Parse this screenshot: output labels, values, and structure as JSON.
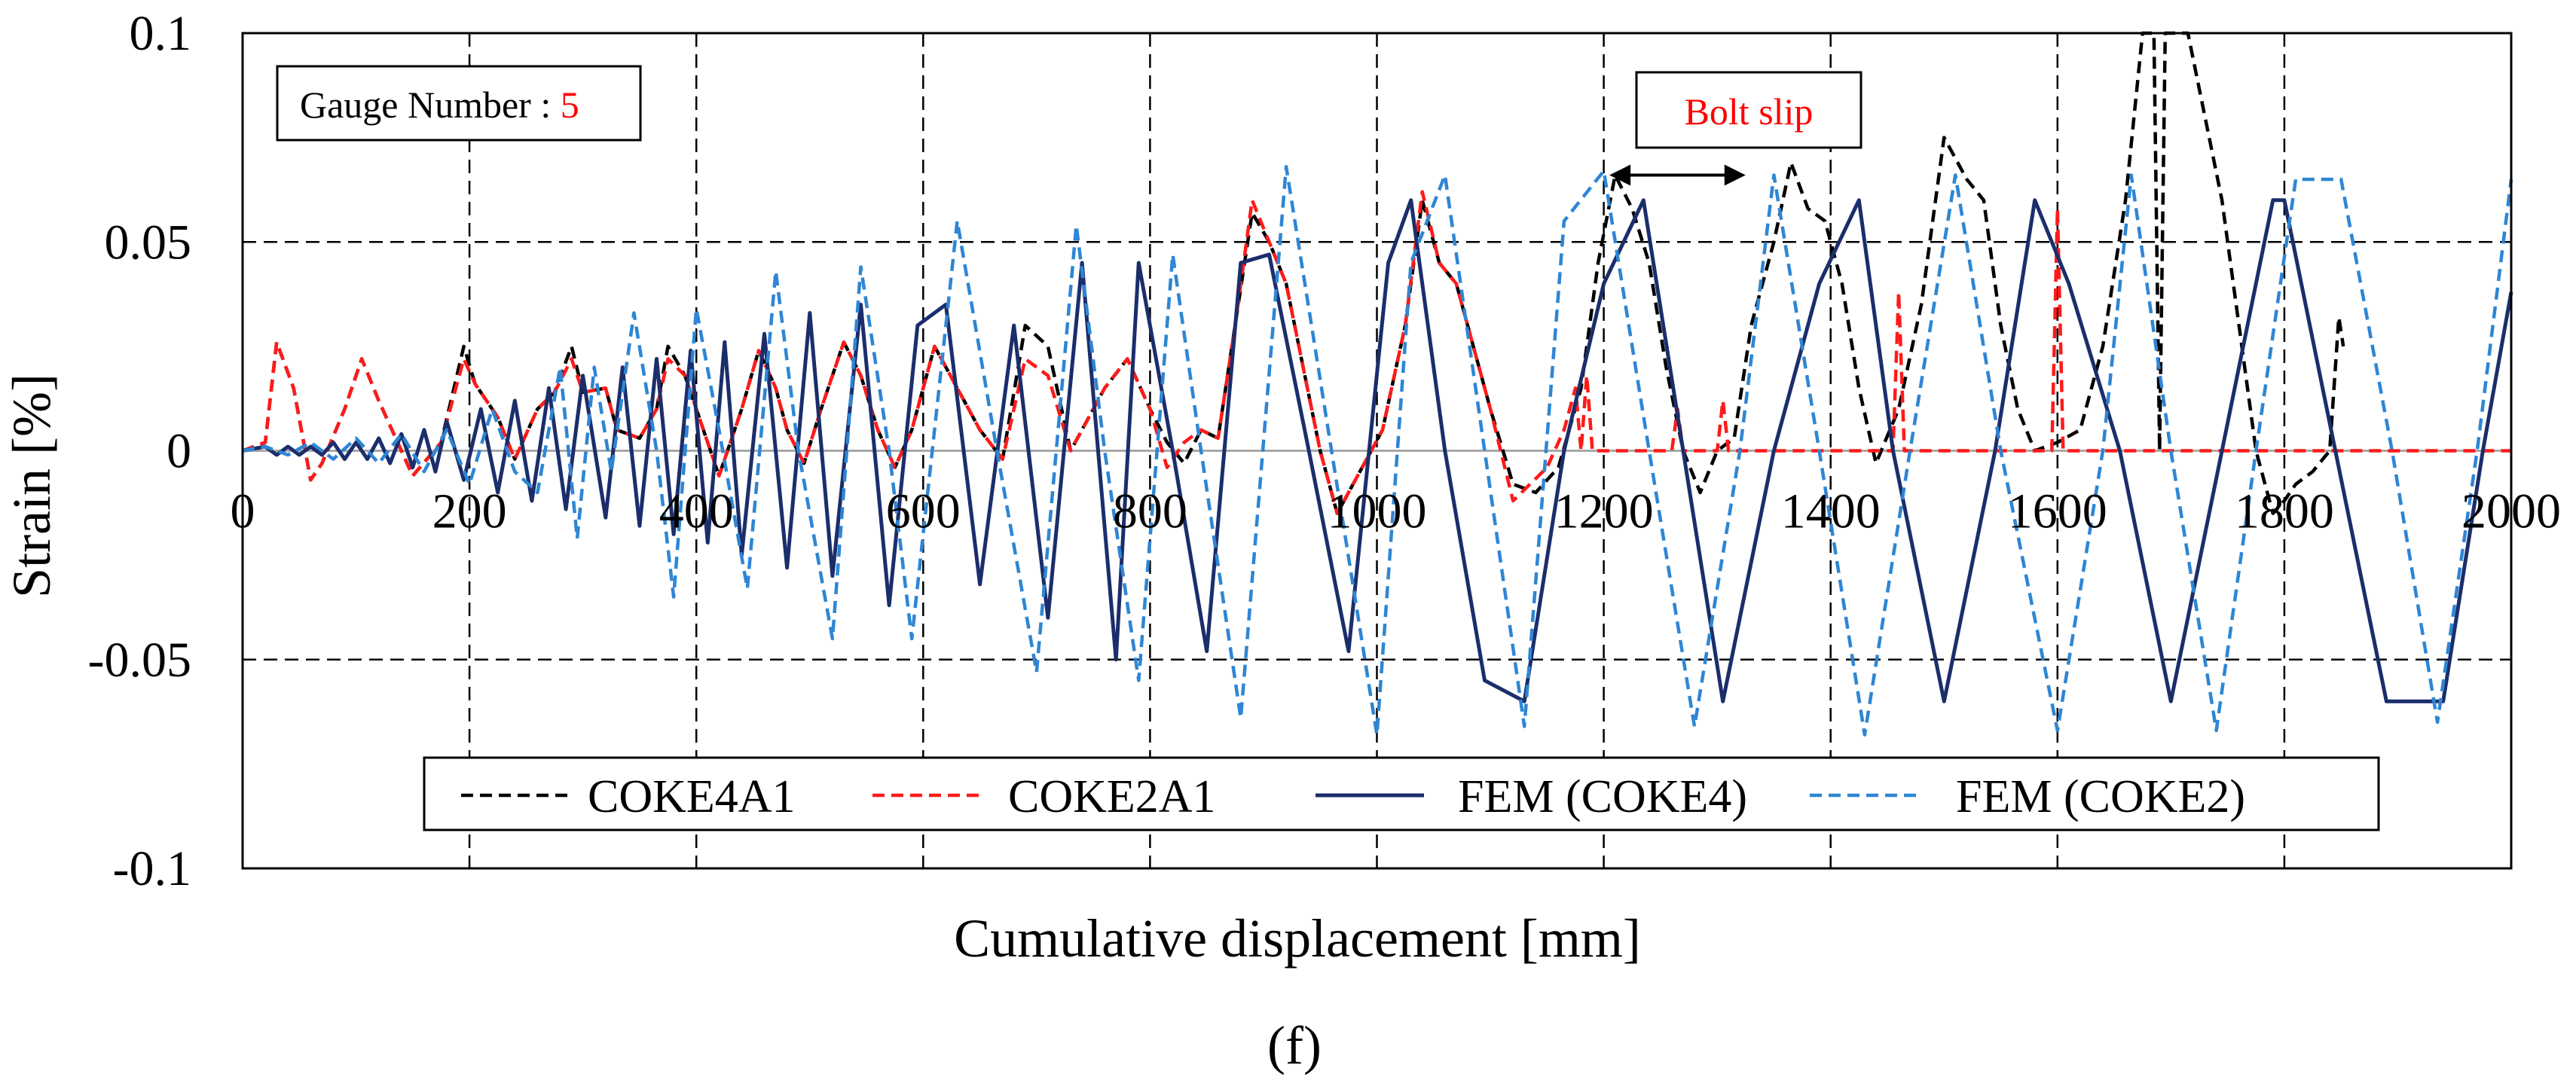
{
  "figure": {
    "sub_label": "(f)"
  },
  "chart_data": {
    "type": "line",
    "xlabel": "Cumulative displacement [mm]",
    "ylabel": "Strain [%]",
    "xlim": [
      0,
      2000
    ],
    "ylim": [
      -0.1,
      0.1
    ],
    "x_ticks": [
      0,
      200,
      400,
      600,
      800,
      1000,
      1200,
      1400,
      1600,
      1800,
      2000
    ],
    "y_ticks": [
      0.1,
      0.05,
      0,
      -0.05,
      -0.1
    ],
    "x_tick_labels": [
      "0",
      "200",
      "400",
      "600",
      "800",
      "1000",
      "1200",
      "1400",
      "1600",
      "1800",
      "2000"
    ],
    "y_tick_labels": [
      "0.1",
      "0.05",
      "0",
      "-0.05",
      "-0.1"
    ],
    "grid": true,
    "legend_position": "bottom",
    "annotations": {
      "gauge_label": "Gauge Number : ",
      "gauge_value": "5",
      "bolt_slip": "Bolt slip",
      "bolt_slip_range": [
        1205,
        1325
      ],
      "bolt_slip_y": 0.066
    },
    "series": [
      {
        "name": "COKE4A1",
        "color": "#000000",
        "dash": "dashed",
        "x": [
          0,
          20,
          30,
          45,
          60,
          70,
          90,
          105,
          120,
          150,
          175,
          195,
          205,
          225,
          240,
          260,
          275,
          290,
          300,
          320,
          330,
          350,
          365,
          375,
          390,
          400,
          420,
          440,
          455,
          470,
          480,
          495,
          510,
          530,
          545,
          560,
          575,
          590,
          610,
          630,
          650,
          670,
          690,
          710,
          730,
          760,
          780,
          800,
          815,
          830,
          845,
          860,
          875,
          890,
          905,
          920,
          935,
          950,
          965,
          985,
          1005,
          1025,
          1040,
          1055,
          1070,
          1085,
          1100,
          1120,
          1140,
          1160,
          1180,
          1195,
          1210,
          1225,
          1240,
          1255,
          1270,
          1285,
          1300,
          1315,
          1330,
          1350,
          1365,
          1380,
          1395,
          1410,
          1425,
          1440,
          1460,
          1480,
          1500,
          1520,
          1535,
          1550,
          1565,
          1580,
          1600,
          1620,
          1640,
          1660,
          1675,
          1685,
          1690,
          1695,
          1705,
          1715,
          1730,
          1745,
          1760,
          1775,
          1790,
          1800,
          1810,
          1825,
          1840,
          1848,
          1852
        ],
        "y": [
          0,
          0.002,
          0.026,
          0.015,
          -0.007,
          -0.003,
          0.01,
          0.022,
          0.012,
          -0.006,
          0.002,
          0.025,
          0.016,
          0.008,
          -0.002,
          0.01,
          0.014,
          0.025,
          0.014,
          0.015,
          0.005,
          0.003,
          0.01,
          0.025,
          0.018,
          0.01,
          -0.006,
          0.01,
          0.024,
          0.015,
          0.005,
          -0.003,
          0.01,
          0.026,
          0.018,
          0.005,
          -0.004,
          0.005,
          0.025,
          0.015,
          0.005,
          -0.002,
          0.03,
          0.025,
          0.0,
          0.015,
          0.022,
          0.01,
          0.002,
          -0.003,
          0.005,
          0.003,
          0.03,
          0.057,
          0.05,
          0.04,
          0.02,
          0.0,
          -0.015,
          -0.005,
          0.005,
          0.03,
          0.06,
          0.045,
          0.04,
          0.025,
          0.01,
          -0.008,
          -0.01,
          -0.004,
          0.015,
          0.045,
          0.066,
          0.058,
          0.045,
          0.02,
          0.0,
          -0.01,
          0.0,
          0.003,
          0.03,
          0.05,
          0.069,
          0.058,
          0.055,
          0.04,
          0.015,
          -0.003,
          0.01,
          0.035,
          0.075,
          0.065,
          0.06,
          0.03,
          0.01,
          0.0,
          0.002,
          0.005,
          0.025,
          0.06,
          0.1,
          0.1,
          0.0,
          0.1,
          0.1,
          0.1,
          0.08,
          0.06,
          0.03,
          0.0,
          -0.015,
          -0.012,
          -0.008,
          -0.005,
          0.0,
          0.032,
          0.025
        ]
      },
      {
        "name": "COKE2A1",
        "color": "#ff1a1a",
        "dash": "dashed",
        "x": [
          0,
          20,
          30,
          45,
          60,
          70,
          90,
          105,
          120,
          150,
          175,
          195,
          205,
          225,
          240,
          260,
          275,
          290,
          300,
          320,
          330,
          350,
          365,
          375,
          390,
          400,
          420,
          440,
          455,
          470,
          480,
          495,
          510,
          530,
          545,
          560,
          575,
          590,
          610,
          630,
          650,
          670,
          690,
          710,
          730,
          760,
          780,
          800,
          815,
          830,
          845,
          860,
          875,
          890,
          905,
          920,
          935,
          950,
          965,
          985,
          1005,
          1025,
          1040,
          1055,
          1070,
          1085,
          1100,
          1120,
          1135,
          1150,
          1165,
          1175,
          1180,
          1185,
          1190,
          1200,
          1260,
          1265,
          1270,
          1280,
          1300,
          1305,
          1310,
          1320,
          1400,
          1455,
          1460,
          1465,
          1475,
          1590,
          1595,
          1600,
          1605,
          1610,
          1620,
          2000
        ],
        "y": [
          0,
          0.002,
          0.026,
          0.015,
          -0.007,
          -0.003,
          0.01,
          0.022,
          0.012,
          -0.006,
          0.002,
          0.022,
          0.016,
          0.008,
          -0.002,
          0.01,
          0.014,
          0.022,
          0.014,
          0.015,
          0.005,
          0.003,
          0.01,
          0.022,
          0.018,
          0.01,
          -0.006,
          0.01,
          0.024,
          0.015,
          0.005,
          -0.003,
          0.01,
          0.026,
          0.018,
          0.005,
          -0.004,
          0.005,
          0.025,
          0.015,
          0.005,
          -0.002,
          0.022,
          0.018,
          0.0,
          0.015,
          0.022,
          0.01,
          -0.004,
          0.002,
          0.005,
          0.003,
          0.03,
          0.06,
          0.05,
          0.04,
          0.02,
          0.0,
          -0.015,
          -0.005,
          0.005,
          0.03,
          0.062,
          0.045,
          0.04,
          0.025,
          0.01,
          -0.012,
          -0.008,
          -0.004,
          0.005,
          0.015,
          0.0,
          0.018,
          0.0,
          0.0,
          0.0,
          0.01,
          0.0,
          0.0,
          0.0,
          0.012,
          0.0,
          0.0,
          0.0,
          0.0,
          0.038,
          0.0,
          0.0,
          0.0,
          0.0,
          0.058,
          0.0,
          0.0,
          0.0,
          0.0
        ]
      },
      {
        "name": "FEM (COKE4)",
        "color": "#1b2e6b",
        "dash": "solid",
        "x": [
          0,
          20,
          30,
          40,
          50,
          60,
          70,
          80,
          90,
          100,
          110,
          120,
          130,
          140,
          150,
          160,
          170,
          180,
          195,
          210,
          225,
          240,
          255,
          270,
          285,
          300,
          320,
          335,
          350,
          365,
          380,
          395,
          410,
          425,
          440,
          460,
          480,
          500,
          520,
          545,
          570,
          595,
          620,
          650,
          680,
          710,
          740,
          770,
          790,
          820,
          850,
          880,
          905,
          940,
          975,
          1010,
          1030,
          1060,
          1095,
          1130,
          1165,
          1200,
          1235,
          1270,
          1305,
          1350,
          1390,
          1425,
          1455,
          1500,
          1545,
          1580,
          1610,
          1655,
          1700,
          1745,
          1790,
          1800,
          1845,
          1890,
          1940,
          1975,
          2000
        ],
        "y": [
          0,
          0.001,
          -0.001,
          0.001,
          -0.001,
          0.001,
          -0.001,
          0.002,
          -0.002,
          0.002,
          -0.002,
          0.003,
          -0.003,
          0.004,
          -0.004,
          0.005,
          -0.005,
          0.007,
          -0.007,
          0.01,
          -0.01,
          0.012,
          -0.012,
          0.015,
          -0.014,
          0.018,
          -0.016,
          0.02,
          -0.018,
          0.022,
          -0.02,
          0.024,
          -0.022,
          0.026,
          -0.025,
          0.028,
          -0.028,
          0.033,
          -0.03,
          0.035,
          -0.037,
          0.03,
          0.035,
          -0.032,
          0.03,
          -0.04,
          0.045,
          -0.05,
          0.045,
          0.0,
          -0.048,
          0.045,
          0.047,
          0.0,
          -0.048,
          0.045,
          0.06,
          0.0,
          -0.055,
          -0.06,
          0.0,
          0.04,
          0.06,
          0.0,
          -0.06,
          0.0,
          0.04,
          0.06,
          0.0,
          -0.06,
          0.0,
          0.06,
          0.04,
          0.0,
          -0.06,
          0.0,
          0.06,
          0.06,
          0.0,
          -0.06,
          -0.06,
          0.0,
          0.038
        ]
      },
      {
        "name": "FEM (COKE2)",
        "color": "#2e86d4",
        "dash": "dashed",
        "x": [
          0,
          20,
          40,
          60,
          80,
          100,
          120,
          140,
          160,
          180,
          200,
          220,
          240,
          260,
          280,
          295,
          310,
          325,
          345,
          365,
          380,
          400,
          420,
          445,
          470,
          490,
          520,
          545,
          570,
          590,
          630,
          665,
          700,
          735,
          760,
          790,
          820,
          845,
          880,
          920,
          960,
          1000,
          1030,
          1060,
          1095,
          1130,
          1165,
          1200,
          1240,
          1280,
          1320,
          1350,
          1390,
          1430,
          1470,
          1510,
          1550,
          1600,
          1640,
          1665,
          1700,
          1740,
          1775,
          1810,
          1850,
          1895,
          1935,
          1970,
          2000
        ],
        "y": [
          0,
          0.001,
          -0.001,
          0.002,
          -0.002,
          0.003,
          -0.003,
          0.004,
          -0.005,
          0.005,
          -0.008,
          0.01,
          -0.005,
          -0.01,
          0.02,
          -0.021,
          0.02,
          -0.005,
          0.033,
          0.0,
          -0.035,
          0.034,
          0.005,
          -0.033,
          0.043,
          0.0,
          -0.045,
          0.044,
          0.0,
          -0.045,
          0.055,
          0.0,
          -0.053,
          0.054,
          0.0,
          -0.055,
          0.047,
          0.0,
          -0.064,
          0.068,
          0.0,
          -0.068,
          0.045,
          0.066,
          0.0,
          -0.066,
          0.055,
          0.067,
          0.0,
          -0.066,
          0.0,
          0.066,
          0.0,
          -0.068,
          0.0,
          0.066,
          0.0,
          -0.067,
          0.0,
          0.066,
          0.0,
          -0.067,
          0.0,
          0.065,
          0.065,
          0.0,
          -0.065,
          0.0,
          0.065
        ]
      }
    ]
  }
}
